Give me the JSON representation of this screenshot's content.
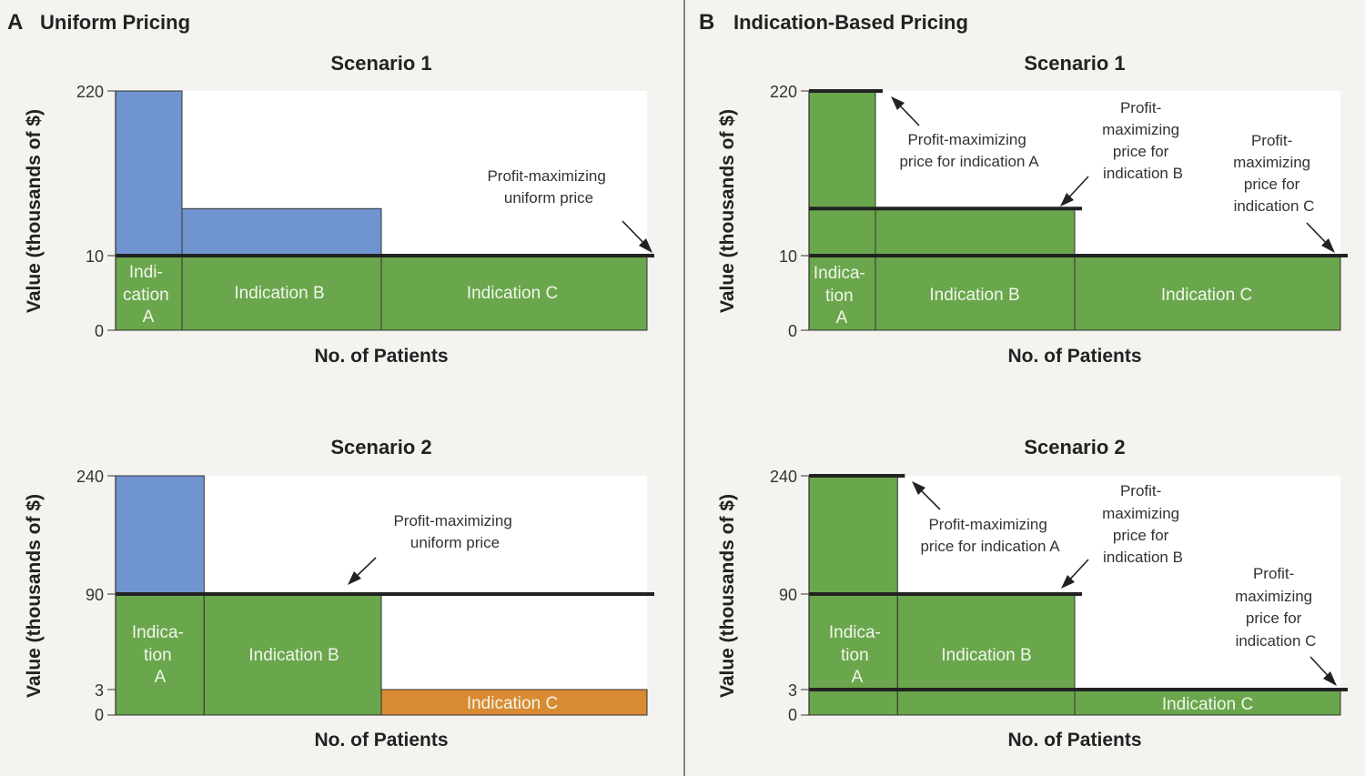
{
  "panels": [
    {
      "letter": "A",
      "title": "Uniform Pricing"
    },
    {
      "letter": "B",
      "title": "Indication-Based Pricing"
    }
  ],
  "colors": {
    "demand": "#6f94cf",
    "sold": "#6aa64c",
    "excluded": "#d98b32",
    "line": "#222222",
    "background": "#f4f3ef"
  },
  "chart_data": [
    {
      "type": "bar",
      "panel": "A",
      "title": "Scenario 1",
      "xlabel": "No. of Patients",
      "ylabel": "Value (thousands of $)",
      "y_ticks": [
        "220",
        "10",
        "0"
      ],
      "categories": [
        "Indication A",
        "Indication B",
        "Indication C"
      ],
      "bar_labels": [
        [
          "Indi-",
          "cation",
          "A"
        ],
        [
          "Indication B"
        ],
        [
          "Indication C"
        ]
      ],
      "relative_patients": [
        1,
        3,
        4
      ],
      "values": [
        220,
        70,
        10
      ],
      "price_lines": [
        {
          "value": 10,
          "label": [
            "Profit-maximizing",
            "uniform price"
          ]
        }
      ]
    },
    {
      "type": "bar",
      "panel": "B",
      "title": "Scenario 1",
      "xlabel": "No. of Patients",
      "ylabel": "Value (thousands of $)",
      "y_ticks": [
        "220",
        "10",
        "0"
      ],
      "categories": [
        "Indication A",
        "Indication B",
        "Indication C"
      ],
      "bar_labels": [
        [
          "Indica-",
          "tion",
          "A"
        ],
        [
          "Indication B"
        ],
        [
          "Indication C"
        ]
      ],
      "relative_patients": [
        1,
        3,
        4
      ],
      "values": [
        220,
        70,
        10
      ],
      "price_lines": [
        {
          "value": 220,
          "label": [
            "Profit-maximizing",
            "price for indication A"
          ]
        },
        {
          "value": 70,
          "label": [
            "Profit-",
            "maximizing",
            "price for",
            "indication B"
          ]
        },
        {
          "value": 10,
          "label": [
            "Profit-",
            "maximizing",
            "price for",
            "indication C"
          ]
        }
      ]
    },
    {
      "type": "bar",
      "panel": "A",
      "title": "Scenario 2",
      "xlabel": "No. of Patients",
      "ylabel": "Value (thousands of $)",
      "y_ticks": [
        "240",
        "90",
        "3",
        "0"
      ],
      "categories": [
        "Indication A",
        "Indication B",
        "Indication C"
      ],
      "bar_labels": [
        [
          "Indica-",
          "tion",
          "A"
        ],
        [
          "Indication B"
        ],
        [
          "Indication C"
        ]
      ],
      "relative_patients": [
        1,
        2,
        3
      ],
      "values": [
        240,
        90,
        3
      ],
      "price_lines": [
        {
          "value": 90,
          "label": [
            "Profit-maximizing",
            "uniform price"
          ]
        }
      ]
    },
    {
      "type": "bar",
      "panel": "B",
      "title": "Scenario 2",
      "xlabel": "No. of Patients",
      "ylabel": "Value (thousands of $)",
      "y_ticks": [
        "240",
        "90",
        "3",
        "0"
      ],
      "categories": [
        "Indication A",
        "Indication B",
        "Indication C"
      ],
      "bar_labels": [
        [
          "Indica-",
          "tion",
          "A"
        ],
        [
          "Indication B"
        ],
        [
          "Indication C"
        ]
      ],
      "relative_patients": [
        1,
        2,
        3
      ],
      "values": [
        240,
        90,
        3
      ],
      "price_lines": [
        {
          "value": 240,
          "label": [
            "Profit-maximizing",
            "price for indication A"
          ]
        },
        {
          "value": 90,
          "label": [
            "Profit-",
            "maximizing",
            "price for",
            "indication B"
          ]
        },
        {
          "value": 3,
          "label": [
            "Profit-",
            "maximizing",
            "price for",
            "indication C"
          ]
        }
      ]
    }
  ]
}
